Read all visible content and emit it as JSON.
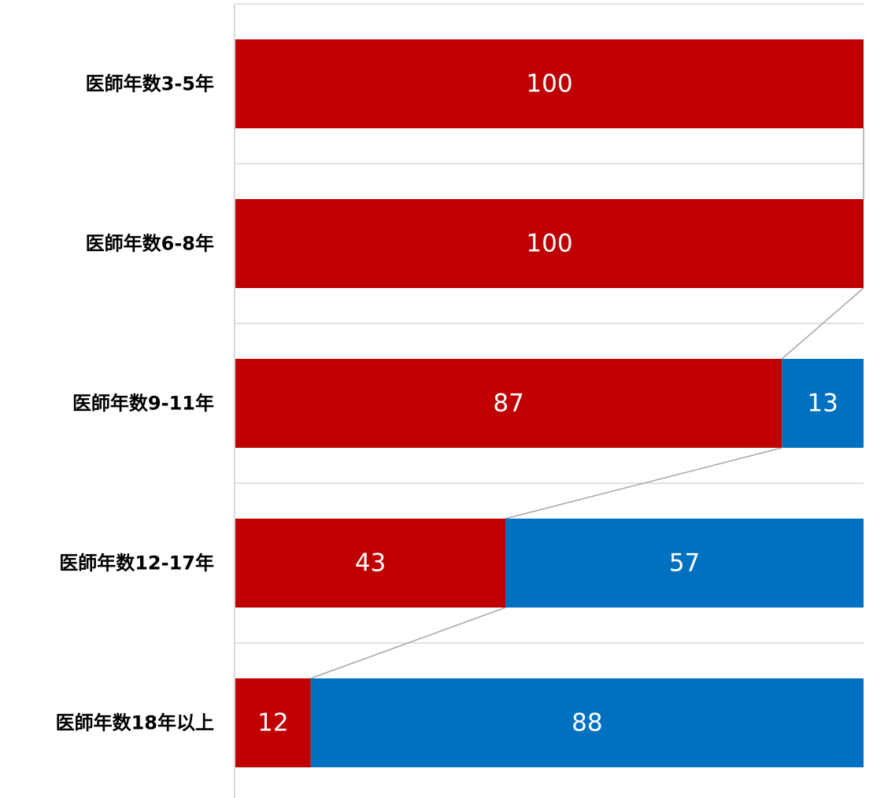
{
  "chart_data": {
    "type": "bar",
    "orientation": "horizontal",
    "stacked": "percent",
    "categories": [
      "医師年数3-5年",
      "医師年数6-8年",
      "医師年数9-11年",
      "医師年数12-17年",
      "医師年数18年以上"
    ],
    "series": [
      {
        "values": [
          100,
          100,
          87,
          43,
          12
        ],
        "color": "#c00000"
      },
      {
        "values": [
          0,
          0,
          13,
          57,
          88
        ],
        "color": "#0070c0"
      }
    ],
    "xlim": [
      0,
      100
    ],
    "series_lines": true,
    "grid": "horizontal gridlines between categories",
    "legend": "none"
  }
}
